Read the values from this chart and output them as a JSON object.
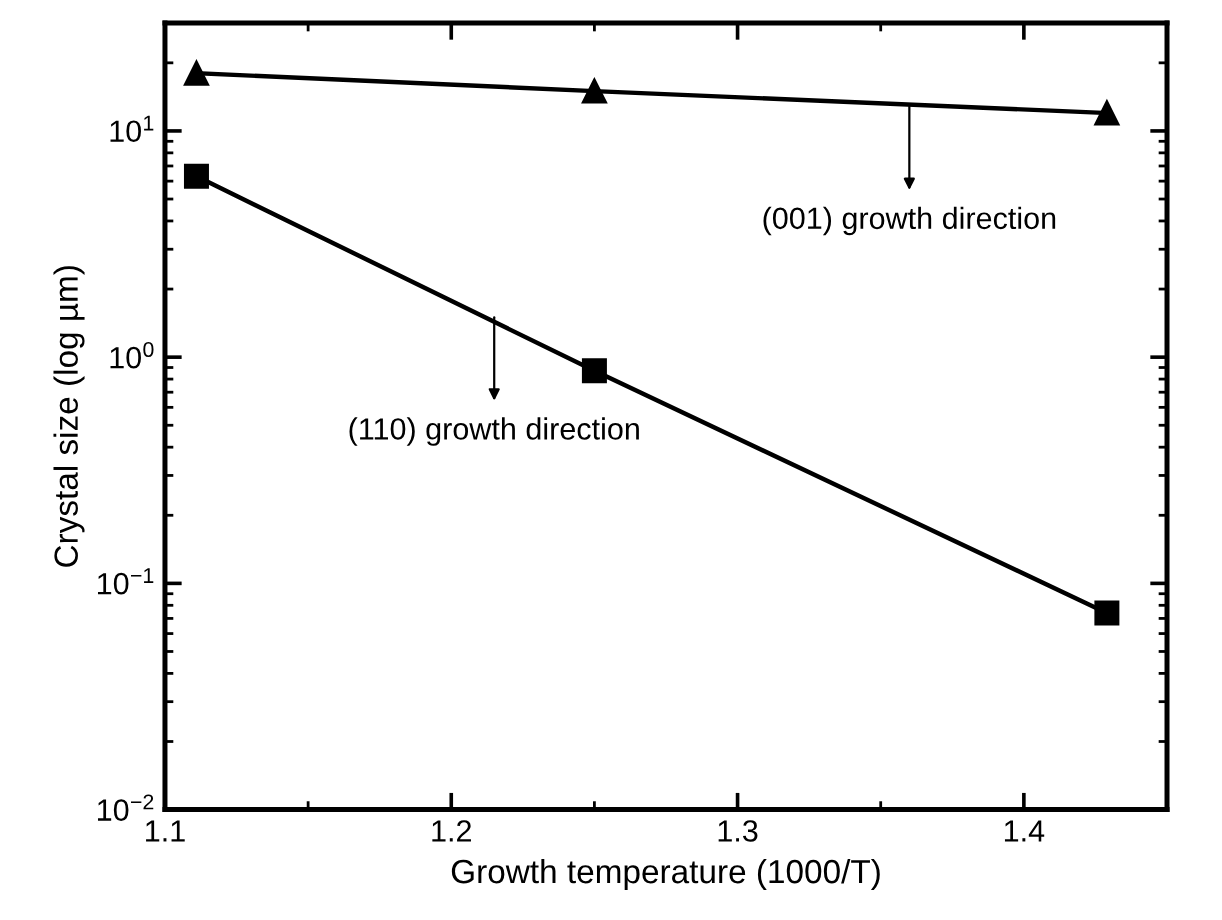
{
  "chart_data": {
    "type": "line",
    "xlabel": "Growth temperature (1000/T)",
    "ylabel": "Crystal size (log µm)",
    "log": "y",
    "grid": false,
    "xlim": [
      1.1,
      1.45
    ],
    "xticks": [
      1.1,
      1.2,
      1.3,
      1.4
    ],
    "ylim": [
      0.01,
      30
    ],
    "yticks": [
      {
        "value": 0.01,
        "label": "10$^{−2}$"
      },
      {
        "value": 0.1,
        "label": "10$^{−1}$"
      },
      {
        "value": 1,
        "label": "10$^{0}$"
      },
      {
        "value": 10,
        "label": "10$^{1}$"
      }
    ],
    "series": [
      {
        "color": "#000000",
        "marker": "triangle",
        "x": [
          1.111,
          1.25,
          1.429
        ],
        "values": [
          18,
          15,
          12
        ]
      },
      {
        "color": "#000000",
        "marker": "square",
        "x": [
          1.111,
          1.25,
          1.429
        ],
        "values": [
          6.3,
          0.87,
          0.074
        ]
      }
    ],
    "annotations": [
      {
        "text": "(001) growth direction",
        "x": 1.36,
        "y": 12.8
      },
      {
        "text": "(110) growth direction",
        "x": 1.215,
        "y": 1.5
      }
    ]
  }
}
